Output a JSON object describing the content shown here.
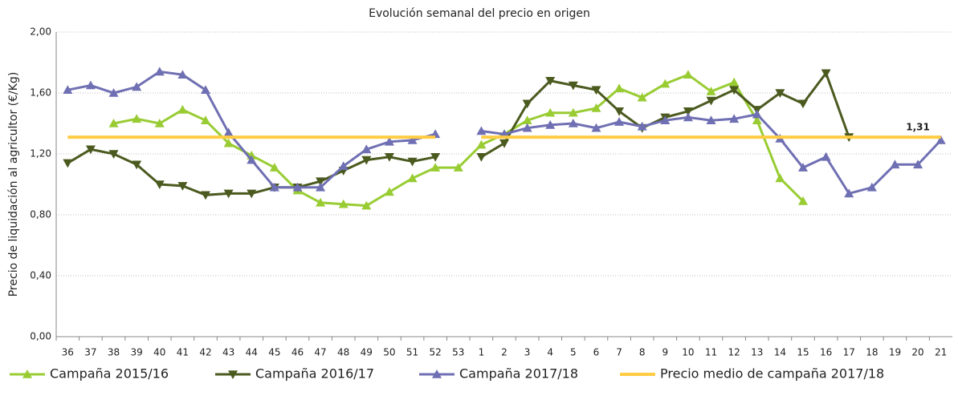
{
  "chart_data": {
    "type": "line",
    "title": "Evolución semanal del precio en origen",
    "y_label": "Precio de liquidación al agricultor (€/Kg)",
    "categories": [
      "36",
      "37",
      "38",
      "39",
      "40",
      "41",
      "42",
      "43",
      "44",
      "45",
      "46",
      "47",
      "48",
      "49",
      "50",
      "51",
      "52",
      "53",
      "1",
      "2",
      "3",
      "4",
      "5",
      "6",
      "7",
      "8",
      "9",
      "10",
      "11",
      "12",
      "13",
      "14",
      "15",
      "16",
      "17",
      "18",
      "19",
      "20",
      "21"
    ],
    "ylim": [
      0,
      2
    ],
    "yticks": [
      {
        "value": 0,
        "label": "0,00"
      },
      {
        "value": 0.4,
        "label": "0,40"
      },
      {
        "value": 0.8,
        "label": "0,80"
      },
      {
        "value": 1.2,
        "label": "1,20"
      },
      {
        "value": 1.6,
        "label": "1,60"
      },
      {
        "value": 2,
        "label": "2,00"
      }
    ],
    "grid": true,
    "legend": "bottom",
    "series": [
      {
        "name": "Campaña 2015/16",
        "color": "#99cc33",
        "marker": "up",
        "values": [
          null,
          null,
          1.4,
          1.43,
          1.4,
          1.49,
          1.42,
          1.27,
          1.19,
          1.11,
          0.96,
          0.88,
          0.87,
          0.86,
          0.95,
          1.04,
          1.11,
          1.11,
          1.26,
          1.33,
          1.42,
          1.47,
          1.47,
          1.5,
          1.63,
          1.57,
          1.66,
          1.72,
          1.61,
          1.67,
          1.42,
          1.04,
          0.89,
          null,
          null,
          null,
          null,
          null,
          null
        ]
      },
      {
        "name": "Campaña 2016/17",
        "color": "#4b5a1f",
        "marker": "down",
        "values": [
          1.14,
          1.23,
          1.2,
          1.13,
          1.0,
          0.99,
          0.93,
          0.94,
          0.94,
          0.98,
          0.98,
          1.02,
          1.09,
          1.16,
          1.18,
          1.15,
          1.18,
          null,
          1.18,
          1.27,
          1.53,
          1.68,
          1.65,
          1.62,
          1.48,
          1.37,
          1.44,
          1.48,
          1.55,
          1.62,
          1.49,
          1.6,
          1.53,
          1.73,
          1.31,
          null,
          null,
          null,
          null
        ]
      },
      {
        "name": "Campaña 2017/18",
        "color": "#6f6fb3",
        "marker": "up",
        "values": [
          1.62,
          1.65,
          1.6,
          1.64,
          1.74,
          1.72,
          1.62,
          1.34,
          1.16,
          0.98,
          0.98,
          0.98,
          1.12,
          1.23,
          1.28,
          1.29,
          1.33,
          null,
          1.35,
          1.33,
          1.37,
          1.39,
          1.4,
          1.37,
          1.41,
          1.38,
          1.42,
          1.44,
          1.42,
          1.43,
          1.46,
          1.3,
          1.11,
          1.18,
          0.94,
          0.98,
          1.13,
          1.13,
          1.29
        ]
      },
      {
        "name": "Precio medio de campaña 2017/18",
        "color": "#ffcc44",
        "marker": null,
        "values": [
          1.31,
          1.31,
          1.31,
          1.31,
          1.31,
          1.31,
          1.31,
          1.31,
          1.31,
          1.31,
          1.31,
          1.31,
          1.31,
          1.31,
          1.31,
          1.31,
          1.31,
          null,
          1.31,
          1.31,
          1.31,
          1.31,
          1.31,
          1.31,
          1.31,
          1.31,
          1.31,
          1.31,
          1.31,
          1.31,
          1.31,
          1.31,
          1.31,
          1.31,
          1.31,
          1.31,
          1.31,
          1.31,
          1.31
        ],
        "value_labels": [
          null,
          null,
          null,
          null,
          null,
          null,
          null,
          null,
          null,
          null,
          null,
          null,
          null,
          null,
          null,
          null,
          null,
          null,
          null,
          null,
          null,
          null,
          null,
          null,
          null,
          null,
          null,
          null,
          null,
          null,
          null,
          null,
          null,
          null,
          null,
          null,
          null,
          "1,31",
          null
        ]
      }
    ]
  }
}
